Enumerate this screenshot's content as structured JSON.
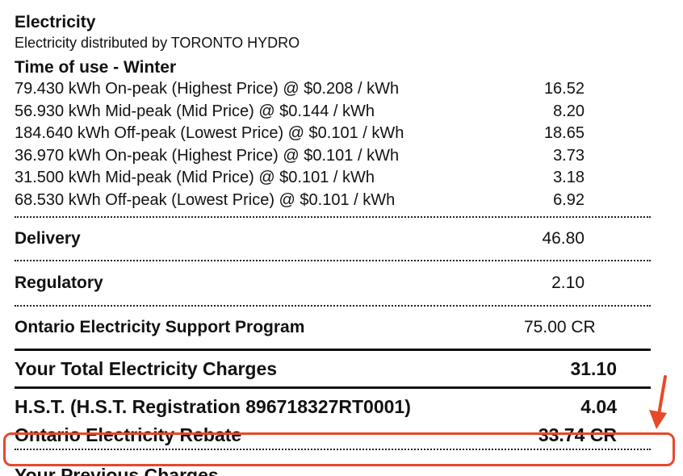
{
  "header": {
    "title": "Electricity",
    "subtitle": "Electricity distributed by TORONTO HYDRO"
  },
  "time_of_use": {
    "title": "Time of use - Winter",
    "rows": [
      {
        "label": "79.430 kWh On-peak (Highest Price) @ $0.208 / kWh",
        "amount": "16.52"
      },
      {
        "label": "56.930 kWh Mid-peak (Mid Price) @ $0.144 / kWh",
        "amount": "8.20"
      },
      {
        "label": "184.640 kWh Off-peak (Lowest Price) @ $0.101 / kWh",
        "amount": "18.65"
      },
      {
        "label": "36.970 kWh On-peak (Highest Price) @ $0.101 / kWh",
        "amount": "3.73"
      },
      {
        "label": "31.500 kWh Mid-peak (Mid Price) @ $0.101 / kWh",
        "amount": "3.18"
      },
      {
        "label": "68.530 kWh Off-peak (Lowest Price) @ $0.101 / kWh",
        "amount": "6.92"
      }
    ]
  },
  "delivery": {
    "label": "Delivery",
    "amount": "46.80"
  },
  "regulatory": {
    "label": "Regulatory",
    "amount": "2.10"
  },
  "oesp": {
    "label": "Ontario Electricity Support Program",
    "amount": "75.00 CR"
  },
  "total": {
    "label": "Your Total Electricity Charges",
    "amount": "31.10"
  },
  "hst": {
    "label": "H.S.T. (H.S.T. Registration 896718327RT0001)",
    "amount": "4.04"
  },
  "rebate": {
    "label": "Ontario Electricity Rebate",
    "amount": "33.74 CR"
  },
  "next_row_partial": {
    "label": "Your Previous Charges"
  },
  "colors": {
    "highlight": "#e8482a",
    "text": "#111111"
  }
}
